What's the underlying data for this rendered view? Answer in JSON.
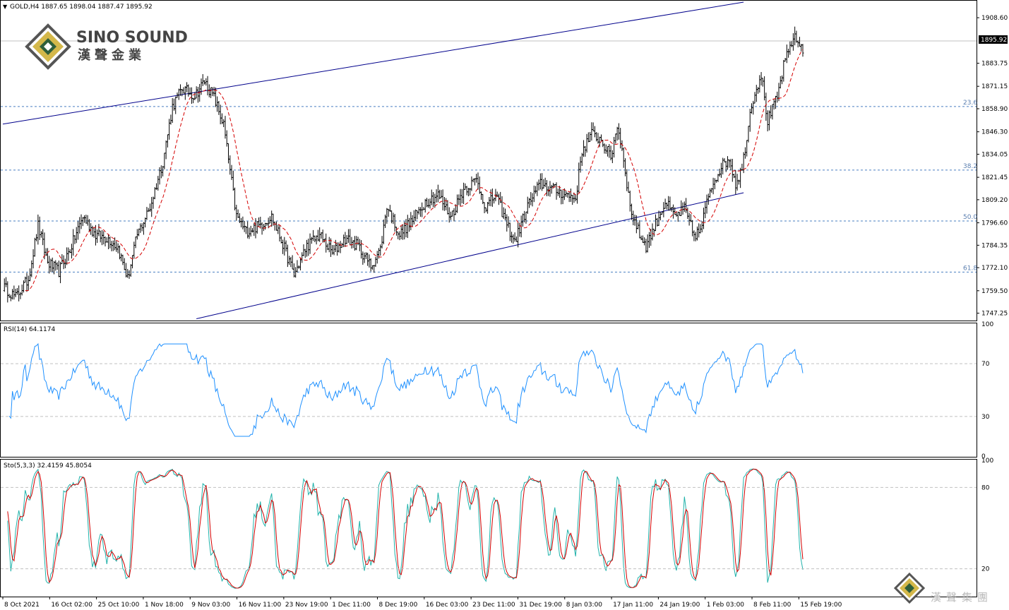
{
  "window": {
    "symbol_line": "GOLD,H4  1887.65 1898.04 1887.47 1895.92",
    "current_price_label": "1895.92"
  },
  "logo": {
    "name_en": "SINO SOUND",
    "name_zh": "漢聲金業",
    "watermark_zh": "漢聲集團"
  },
  "colors": {
    "bull_bar": "#000000",
    "bear_bar": "#000000",
    "ma": "#d40000",
    "channel": "#00008b",
    "fib": "#4a7fc1",
    "rsi": "#1e90ff",
    "stoch_main": "#20b2aa",
    "stoch_signal": "#d40000",
    "level_line": "#c0c0c0",
    "border": "#000000"
  },
  "chart_data": [
    {
      "type": "ohlc",
      "panel": "price",
      "ylim": [
        1744.0,
        1917.5
      ],
      "y_ticks": [
        "1908.60",
        "1895.92",
        "1883.75",
        "1871.15",
        "1858.90",
        "1846.30",
        "1834.05",
        "1821.45",
        "1809.20",
        "1796.60",
        "1784.35",
        "1772.10",
        "1759.50",
        "1747.25"
      ],
      "close_key_points": [
        [
          0,
          1762
        ],
        [
          8,
          1756
        ],
        [
          16,
          1766
        ],
        [
          22,
          1795
        ],
        [
          28,
          1775
        ],
        [
          35,
          1770
        ],
        [
          42,
          1782
        ],
        [
          50,
          1800
        ],
        [
          58,
          1790
        ],
        [
          66,
          1788
        ],
        [
          72,
          1783
        ],
        [
          78,
          1766
        ],
        [
          84,
          1790
        ],
        [
          92,
          1805
        ],
        [
          100,
          1830
        ],
        [
          106,
          1860
        ],
        [
          112,
          1870
        ],
        [
          120,
          1866
        ],
        [
          126,
          1874
        ],
        [
          132,
          1865
        ],
        [
          138,
          1850
        ],
        [
          146,
          1800
        ],
        [
          152,
          1792
        ],
        [
          160,
          1795
        ],
        [
          168,
          1800
        ],
        [
          175,
          1785
        ],
        [
          182,
          1768
        ],
        [
          190,
          1784
        ],
        [
          198,
          1790
        ],
        [
          206,
          1780
        ],
        [
          214,
          1788
        ],
        [
          222,
          1784
        ],
        [
          230,
          1773
        ],
        [
          236,
          1782
        ],
        [
          240,
          1806
        ],
        [
          248,
          1790
        ],
        [
          256,
          1798
        ],
        [
          264,
          1808
        ],
        [
          272,
          1812
        ],
        [
          280,
          1800
        ],
        [
          288,
          1815
        ],
        [
          296,
          1820
        ],
        [
          302,
          1805
        ],
        [
          308,
          1812
        ],
        [
          314,
          1798
        ],
        [
          320,
          1786
        ],
        [
          328,
          1806
        ],
        [
          336,
          1818
        ],
        [
          344,
          1815
        ],
        [
          352,
          1812
        ],
        [
          358,
          1810
        ],
        [
          362,
          1836
        ],
        [
          368,
          1845
        ],
        [
          374,
          1842
        ],
        [
          380,
          1832
        ],
        [
          384,
          1850
        ],
        [
          388,
          1832
        ],
        [
          392,
          1805
        ],
        [
          398,
          1790
        ],
        [
          402,
          1784
        ],
        [
          408,
          1796
        ],
        [
          414,
          1808
        ],
        [
          420,
          1800
        ],
        [
          426,
          1804
        ],
        [
          432,
          1790
        ],
        [
          436,
          1792
        ],
        [
          442,
          1815
        ],
        [
          448,
          1826
        ],
        [
          454,
          1832
        ],
        [
          458,
          1818
        ],
        [
          462,
          1826
        ],
        [
          468,
          1862
        ],
        [
          474,
          1878
        ],
        [
          478,
          1852
        ],
        [
          484,
          1865
        ],
        [
          488,
          1882
        ],
        [
          494,
          1898
        ],
        [
          500,
          1892
        ]
      ],
      "ma_period": 14,
      "channel_lines": [
        {
          "x": [
            0,
            463
          ],
          "y": [
            1850.5,
            1917.1
          ]
        },
        {
          "x": [
            121,
            463
          ],
          "y": [
            1744.2,
            1813.0
          ]
        }
      ],
      "fib_levels": [
        {
          "label": "23.6",
          "value": 1860.1
        },
        {
          "label": "38.2",
          "value": 1825.4
        },
        {
          "label": "50.0",
          "value": 1797.6
        },
        {
          "label": "61.8",
          "value": 1769.7
        }
      ]
    },
    {
      "type": "line",
      "panel": "rsi",
      "title": "RSI(14) 64.1174",
      "ylim": [
        0,
        100
      ],
      "levels": [
        70,
        30
      ],
      "y_ticks": [
        "100",
        "70",
        "30",
        "0"
      ],
      "last_value": 64.1174
    },
    {
      "type": "line",
      "panel": "stochastic",
      "title": "Sto(5,3,3) 32.4159 45.8054",
      "ylim": [
        0,
        100
      ],
      "levels": [
        80,
        20
      ],
      "y_ticks": [
        "100",
        "80",
        "20"
      ],
      "last_main": 32.4159,
      "last_signal": 45.8054
    }
  ],
  "time_axis": {
    "labels": [
      "8 Oct 2021",
      "16 Oct 02:00",
      "25 Oct 10:00",
      "1 Nov 18:00",
      "9 Nov 03:00",
      "16 Nov 11:00",
      "23 Nov 19:00",
      "1 Dec 11:00",
      "8 Dec 19:00",
      "16 Dec 03:00",
      "23 Dec 11:00",
      "31 Dec 19:00",
      "8 Jan 03:00",
      "17 Jan 11:00",
      "24 Jan 19:00",
      "1 Feb 03:00",
      "8 Feb 11:00",
      "15 Feb 19:00"
    ]
  }
}
